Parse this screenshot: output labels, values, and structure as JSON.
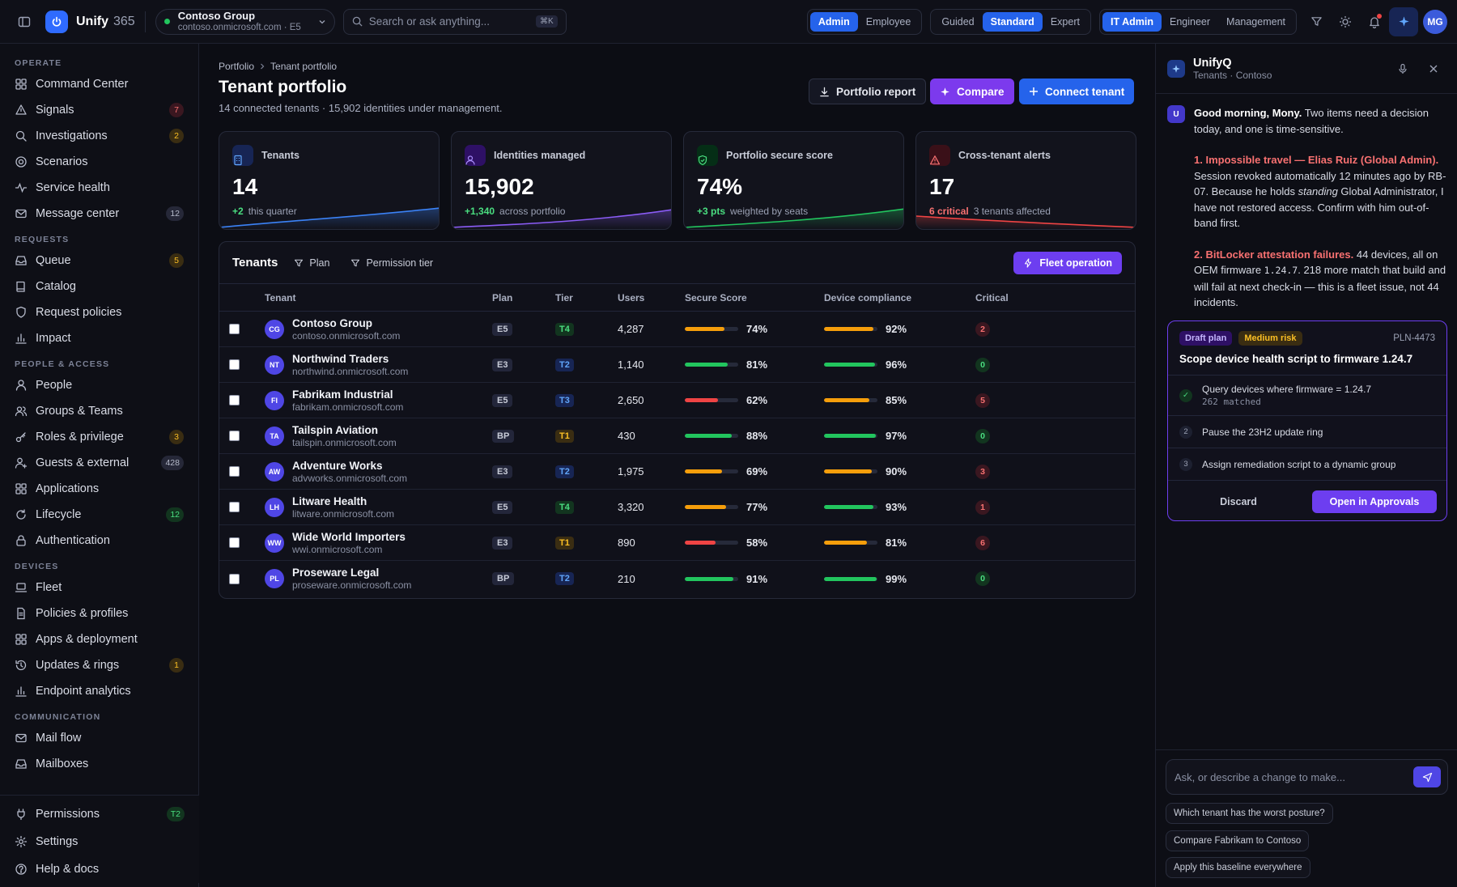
{
  "app": {
    "name": "Unify",
    "suffix": "365"
  },
  "tenant_switcher": {
    "name": "Contoso Group",
    "sub": "contoso.onmicrosoft.com · E5"
  },
  "search": {
    "placeholder": "Search or ask anything...",
    "shortcut": "⌘K"
  },
  "mode_toggle": {
    "items": [
      "Admin",
      "Employee"
    ],
    "active": "Admin"
  },
  "density_toggle": {
    "items": [
      "Guided",
      "Standard",
      "Expert"
    ],
    "active": "Standard"
  },
  "role_toggle": {
    "items": [
      "IT Admin",
      "Engineer",
      "Management"
    ],
    "active": "IT Admin"
  },
  "user": {
    "initials": "MG"
  },
  "sidebar": {
    "sections": [
      {
        "title": "OPERATE",
        "items": [
          {
            "label": "Command Center",
            "icon": "grid-icon",
            "badge": ""
          },
          {
            "label": "Signals",
            "icon": "warning-icon",
            "badge": "7",
            "tone": "red"
          },
          {
            "label": "Investigations",
            "icon": "magnifier-icon",
            "badge": "2",
            "tone": "amber"
          },
          {
            "label": "Scenarios",
            "icon": "target-icon",
            "badge": ""
          },
          {
            "label": "Service health",
            "icon": "pulse-icon",
            "badge": ""
          },
          {
            "label": "Message center",
            "icon": "mail-icon",
            "badge": "12",
            "tone": "gray"
          }
        ]
      },
      {
        "title": "REQUESTS",
        "items": [
          {
            "label": "Queue",
            "icon": "inbox-icon",
            "badge": "5",
            "tone": "amber"
          },
          {
            "label": "Catalog",
            "icon": "book-icon",
            "badge": ""
          },
          {
            "label": "Request policies",
            "icon": "shield-icon",
            "badge": ""
          },
          {
            "label": "Impact",
            "icon": "chart-icon",
            "badge": ""
          }
        ]
      },
      {
        "title": "PEOPLE & ACCESS",
        "items": [
          {
            "label": "People",
            "icon": "user-icon",
            "badge": ""
          },
          {
            "label": "Groups & Teams",
            "icon": "users-icon",
            "badge": ""
          },
          {
            "label": "Roles & privilege",
            "icon": "key-icon",
            "badge": "3",
            "tone": "amber"
          },
          {
            "label": "Guests & external",
            "icon": "guest-icon",
            "badge": "428",
            "tone": "gray"
          },
          {
            "label": "Applications",
            "icon": "apps-icon",
            "badge": ""
          },
          {
            "label": "Lifecycle",
            "icon": "cycle-icon",
            "badge": "12",
            "tone": "green"
          },
          {
            "label": "Authentication",
            "icon": "lock-icon",
            "badge": ""
          }
        ]
      },
      {
        "title": "DEVICES",
        "items": [
          {
            "label": "Fleet",
            "icon": "laptop-icon",
            "badge": ""
          },
          {
            "label": "Policies & profiles",
            "icon": "doc-icon",
            "badge": ""
          },
          {
            "label": "Apps & deployment",
            "icon": "apps-icon",
            "badge": ""
          },
          {
            "label": "Updates & rings",
            "icon": "history-icon",
            "badge": "1",
            "tone": "amber"
          },
          {
            "label": "Endpoint analytics",
            "icon": "chart-icon",
            "badge": ""
          }
        ]
      },
      {
        "title": "COMMUNICATION",
        "items": [
          {
            "label": "Mail flow",
            "icon": "mail-icon",
            "badge": ""
          },
          {
            "label": "Mailboxes",
            "icon": "inbox-icon",
            "badge": ""
          }
        ]
      }
    ],
    "footer": [
      {
        "label": "Permissions",
        "icon": "plug-icon",
        "badge": "T2",
        "tone": "green"
      },
      {
        "label": "Settings",
        "icon": "gear-icon",
        "badge": ""
      },
      {
        "label": "Help & docs",
        "icon": "help-icon",
        "badge": ""
      }
    ]
  },
  "page": {
    "breadcrumb": [
      "Portfolio",
      "Tenant portfolio"
    ],
    "title": "Tenant portfolio",
    "subtitle": "14 connected tenants · 15,902 identities under management.",
    "actions": {
      "report": "Portfolio report",
      "compare": "Compare",
      "connect": "Connect tenant"
    }
  },
  "kpis": [
    {
      "label": "Tenants",
      "value": "14",
      "delta": "+2",
      "note": "this quarter",
      "color": "#3b82f6",
      "delta_color": "#4ade80"
    },
    {
      "label": "Identities managed",
      "value": "15,902",
      "delta": "+1,340",
      "note": "across portfolio",
      "color": "#8b5cf6",
      "delta_color": "#4ade80"
    },
    {
      "label": "Portfolio secure score",
      "value": "74%",
      "delta": "+3 pts",
      "note": "weighted by seats",
      "color": "#22c55e",
      "delta_color": "#4ade80"
    },
    {
      "label": "Cross-tenant alerts",
      "value": "17",
      "delta": "6 critical",
      "note": "3 tenants affected",
      "color": "#ef4444",
      "delta_color": "#f87171"
    }
  ],
  "table": {
    "title": "Tenants",
    "filters": [
      "Plan",
      "Permission tier"
    ],
    "action": "Fleet operation",
    "columns": [
      "Tenant",
      "Plan",
      "Tier",
      "Users",
      "Secure Score",
      "Device compliance",
      "Critical"
    ],
    "rows": [
      {
        "initials": "CG",
        "name": "Contoso Group",
        "domain": "contoso.onmicrosoft.com",
        "plan": "E5",
        "tier": "T4",
        "users": "4,287",
        "score": 74,
        "score_label": "74%",
        "compliance": 92,
        "compliance_label": "92%",
        "critical": "2"
      },
      {
        "initials": "NT",
        "name": "Northwind Traders",
        "domain": "northwind.onmicrosoft.com",
        "plan": "E3",
        "tier": "T2",
        "users": "1,140",
        "score": 81,
        "score_label": "81%",
        "compliance": 96,
        "compliance_label": "96%",
        "critical": "0"
      },
      {
        "initials": "FI",
        "name": "Fabrikam Industrial",
        "domain": "fabrikam.onmicrosoft.com",
        "plan": "E5",
        "tier": "T3",
        "users": "2,650",
        "score": 62,
        "score_label": "62%",
        "compliance": 85,
        "compliance_label": "85%",
        "critical": "5"
      },
      {
        "initials": "TA",
        "name": "Tailspin Aviation",
        "domain": "tailspin.onmicrosoft.com",
        "plan": "BP",
        "tier": "T1",
        "users": "430",
        "score": 88,
        "score_label": "88%",
        "compliance": 97,
        "compliance_label": "97%",
        "critical": "0"
      },
      {
        "initials": "AW",
        "name": "Adventure Works",
        "domain": "advworks.onmicrosoft.com",
        "plan": "E3",
        "tier": "T2",
        "users": "1,975",
        "score": 69,
        "score_label": "69%",
        "compliance": 90,
        "compliance_label": "90%",
        "critical": "3"
      },
      {
        "initials": "LH",
        "name": "Litware Health",
        "domain": "litware.onmicrosoft.com",
        "plan": "E5",
        "tier": "T4",
        "users": "3,320",
        "score": 77,
        "score_label": "77%",
        "compliance": 93,
        "compliance_label": "93%",
        "critical": "1"
      },
      {
        "initials": "WW",
        "name": "Wide World Importers",
        "domain": "wwi.onmicrosoft.com",
        "plan": "E3",
        "tier": "T1",
        "users": "890",
        "score": 58,
        "score_label": "58%",
        "compliance": 81,
        "compliance_label": "81%",
        "critical": "6"
      },
      {
        "initials": "PL",
        "name": "Proseware Legal",
        "domain": "proseware.onmicrosoft.com",
        "plan": "BP",
        "tier": "T2",
        "users": "210",
        "score": 91,
        "score_label": "91%",
        "compliance": 99,
        "compliance_label": "99%",
        "critical": "0"
      }
    ]
  },
  "assistant": {
    "name": "UnifyQ",
    "context": "Tenants · Contoso",
    "user_initial": "U",
    "greeting_bold": "Good morning, Mony.",
    "greeting": " Two items need a decision today, and one is time-sensitive.",
    "item1_title": "1. Impossible travel — Elias Ruiz (Global Admin).",
    "item1_a": " Session revoked automatically 12 minutes ago by RB-07. Because he holds ",
    "item1_em": "standing",
    "item1_b": " Global Administrator, I have not restored access. Confirm with him out-of-band first.",
    "item2_title": "2. BitLocker attestation failures.",
    "item2_a": " 44 devices, all on OEM firmware ",
    "item2_code": "1.24.7",
    "item2_b": ". 218 more match that build and will fail at next check-in — this is a fleet issue, not 44 incidents.",
    "plan": {
      "tag1": "Draft plan",
      "tag2": "Medium risk",
      "id": "PLN-4473",
      "title": "Scope device health script to firmware 1.24.7",
      "steps": [
        {
          "num": "✓",
          "text": "Query devices where firmware = 1.24.7",
          "detail": "262 matched"
        },
        {
          "num": "2",
          "text": "Pause the 23H2 update ring",
          "detail": ""
        },
        {
          "num": "3",
          "text": "Assign remediation script to a dynamic group",
          "detail": ""
        }
      ],
      "discard": "Discard",
      "open": "Open in Approvals"
    },
    "input_placeholder": "Ask, or describe a change to make...",
    "suggestions": [
      "Which tenant has the worst posture?",
      "Compare Fabrikam to Contoso",
      "Apply this baseline everywhere"
    ]
  }
}
